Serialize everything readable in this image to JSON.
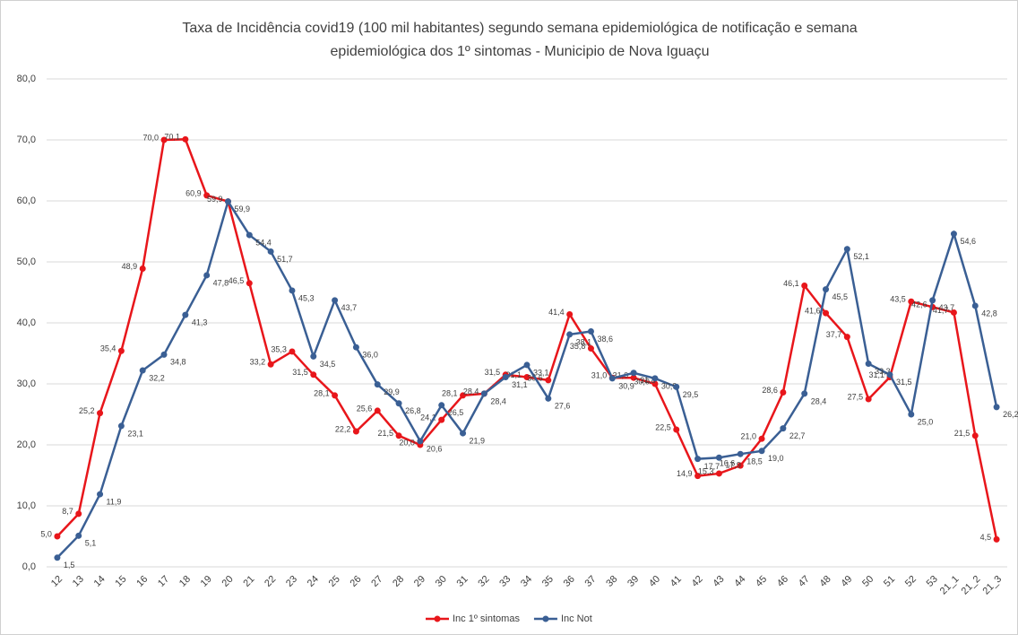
{
  "chart_data": {
    "type": "line",
    "title": "Taxa de Incidência covid19 (100 mil habitantes) segundo semana epidemiológica de notificação e semana",
    "subtitle": "epidemiológica dos 1º sintomas - Municipio de Nova Iguaçu",
    "categories": [
      "12",
      "13",
      "14",
      "15",
      "16",
      "17",
      "18",
      "19",
      "20",
      "21",
      "22",
      "23",
      "24",
      "25",
      "26",
      "27",
      "28",
      "29",
      "30",
      "31",
      "32",
      "33",
      "34",
      "35",
      "36",
      "37",
      "38",
      "39",
      "40",
      "41",
      "42",
      "43",
      "44",
      "45",
      "46",
      "47",
      "48",
      "49",
      "50",
      "51",
      "52",
      "53",
      "21_1",
      "21_2",
      "21_3"
    ],
    "series": [
      {
        "name": "Inc 1º sintomas",
        "color": "#e8161b",
        "values": [
          5.0,
          8.7,
          25.2,
          35.4,
          48.9,
          70.0,
          70.1,
          60.9,
          59.9,
          46.5,
          33.2,
          35.3,
          31.5,
          28.1,
          22.2,
          25.6,
          21.5,
          20.0,
          24.1,
          28.1,
          28.4,
          31.5,
          31.1,
          30.6,
          41.4,
          35.8,
          31.0,
          31.0,
          30.0,
          22.5,
          14.9,
          15.3,
          16.6,
          21.0,
          28.6,
          46.1,
          41.6,
          37.7,
          27.5,
          31.1,
          43.5,
          42.6,
          41.7,
          21.5,
          4.5
        ],
        "value_labels": [
          "5,0",
          "8,7",
          "25,2",
          "35,4",
          "48,9",
          "70,0",
          "70,1",
          "60,9",
          "59,9",
          "46,5",
          "33,2",
          "35,3",
          "31,5",
          "28,1",
          "22,2",
          "25,6",
          "21,5",
          "20,0",
          "24,1",
          "28,1",
          "28,4",
          "31,5",
          "31,1",
          "30,6",
          "41,4",
          "35,8",
          "31,0",
          "31,0",
          "30,0",
          "22,5",
          "14,9",
          "15,3",
          "16,6",
          "21,0",
          "28,6",
          "46,1",
          "41,6",
          "37,7",
          "27,5",
          "31,1",
          "43,5",
          "42,6",
          "41,7",
          "21,5",
          "4,5"
        ]
      },
      {
        "name": "Inc Not",
        "color": "#3a5f94",
        "values": [
          1.5,
          5.1,
          11.9,
          23.1,
          32.2,
          34.8,
          41.3,
          47.8,
          59.9,
          54.4,
          51.7,
          45.3,
          34.5,
          43.7,
          36.0,
          29.9,
          26.8,
          20.6,
          26.5,
          21.9,
          28.4,
          31.1,
          33.1,
          27.6,
          38.1,
          38.6,
          30.9,
          31.8,
          30.9,
          29.5,
          17.7,
          17.9,
          18.5,
          19.0,
          22.7,
          28.4,
          45.5,
          52.1,
          33.3,
          31.5,
          25.0,
          43.7,
          54.6,
          42.8,
          26.2
        ],
        "value_labels": [
          "1,5",
          "5,1",
          "11,9",
          "23,1",
          "32,2",
          "34,8",
          "41,3",
          "47,8",
          "59,9",
          "54,4",
          "51,7",
          "45,3",
          "34,5",
          "43,7",
          "36,0",
          "29,9",
          "26,8",
          "20,6",
          "26,5",
          "21,9",
          "28,4",
          "31,1",
          "33,1",
          "27,6",
          "38,1",
          "38,6",
          "30,9",
          "31,8",
          "30,9",
          "29,5",
          "17,7",
          "17,9",
          "18,5",
          "19,0",
          "22,7",
          "28,4",
          "45,5",
          "52,1",
          "33,3",
          "31,5",
          "25,0",
          "43,7",
          "54,6",
          "42,8",
          "26,2"
        ]
      }
    ],
    "ylim": [
      0,
      80
    ],
    "yticks": [
      {
        "value": 0,
        "label": "0,0"
      },
      {
        "value": 10,
        "label": "10,0"
      },
      {
        "value": 20,
        "label": "20,0"
      },
      {
        "value": 30,
        "label": "30,0"
      },
      {
        "value": 40,
        "label": "40,0"
      },
      {
        "value": 50,
        "label": "50,0"
      },
      {
        "value": 60,
        "label": "60,0"
      },
      {
        "value": 70,
        "label": "70,0"
      },
      {
        "value": 80,
        "label": "80,0"
      }
    ],
    "grid": true,
    "legend": "bottom"
  }
}
